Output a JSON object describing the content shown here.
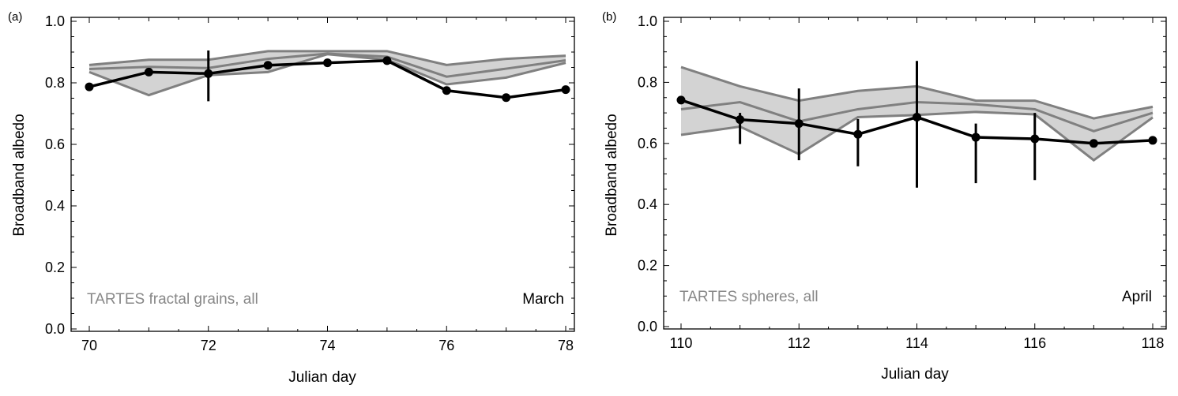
{
  "chart_data": [
    {
      "type": "line",
      "panel_label": "(a)",
      "xlabel": "Julian day",
      "ylabel": "Broadband albedo",
      "xlim": [
        70,
        78
      ],
      "ylim": [
        0,
        1
      ],
      "xticks": [
        "70",
        "72",
        "74",
        "76",
        "78"
      ],
      "yticks": [
        "0.0",
        "0.2",
        "0.4",
        "0.6",
        "0.8",
        "1.0"
      ],
      "annotation_left": "TARTES fractal grains, all",
      "annotation_right": "March",
      "x": [
        70,
        71,
        72,
        73,
        74,
        75,
        76,
        77,
        78
      ],
      "observed": [
        0.787,
        0.835,
        0.83,
        0.857,
        0.865,
        0.872,
        0.775,
        0.752,
        0.778
      ],
      "observed_error": [
        null,
        null,
        [
          0.74,
          0.905
        ],
        null,
        null,
        null,
        null,
        null,
        null
      ],
      "model_upper": [
        0.858,
        0.875,
        0.875,
        0.903,
        0.903,
        0.903,
        0.858,
        0.878,
        0.888
      ],
      "model_middle": [
        0.845,
        0.852,
        0.848,
        0.878,
        0.895,
        0.885,
        0.82,
        0.846,
        0.873
      ],
      "model_lower": [
        0.835,
        0.76,
        0.825,
        0.835,
        0.893,
        0.875,
        0.795,
        0.817,
        0.865
      ],
      "grid": false,
      "colors": {
        "observed": "#000000",
        "model": "#808080",
        "band": "#d3d3d3"
      }
    },
    {
      "type": "line",
      "panel_label": "(b)",
      "xlabel": "Julian day",
      "ylabel": "Broadband albedo",
      "xlim": [
        110,
        118
      ],
      "ylim": [
        0,
        1
      ],
      "xticks": [
        "110",
        "112",
        "114",
        "116",
        "118"
      ],
      "yticks": [
        "0.0",
        "0.2",
        "0.4",
        "0.6",
        "0.8",
        "1.0"
      ],
      "annotation_left": "TARTES spheres, all",
      "annotation_right": "April",
      "x": [
        110,
        111,
        112,
        113,
        114,
        115,
        116,
        117,
        118
      ],
      "observed": [
        0.742,
        0.678,
        0.665,
        0.63,
        0.686,
        0.62,
        0.615,
        0.6,
        0.61
      ],
      "observed_error": [
        null,
        [
          0.598,
          0.7
        ],
        [
          0.545,
          0.78
        ],
        [
          0.525,
          0.68
        ],
        [
          0.455,
          0.87
        ],
        [
          0.47,
          0.665
        ],
        [
          0.48,
          0.7
        ],
        [
          0.59,
          0.605
        ],
        null
      ],
      "model_upper": [
        0.85,
        0.787,
        0.74,
        0.772,
        0.787,
        0.74,
        0.74,
        0.682,
        0.72
      ],
      "model_middle": [
        0.712,
        0.735,
        0.672,
        0.712,
        0.735,
        0.728,
        0.712,
        0.64,
        0.7
      ],
      "model_lower": [
        0.628,
        0.655,
        0.565,
        0.686,
        0.693,
        0.703,
        0.695,
        0.545,
        0.685
      ],
      "grid": false,
      "colors": {
        "observed": "#000000",
        "model": "#808080",
        "band": "#d3d3d3"
      }
    }
  ]
}
